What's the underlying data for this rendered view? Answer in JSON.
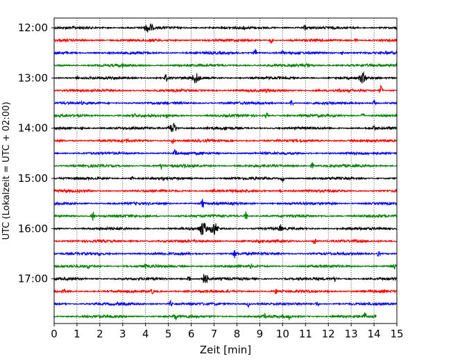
{
  "chart_data": {
    "type": "line",
    "title": "",
    "xlabel": "Zeit  [min]",
    "ylabel": "UTC (Lokalzeit = UTC + 02:00)",
    "xlim": [
      0,
      15
    ],
    "x_ticks": [
      "0",
      "1",
      "2",
      "3",
      "4",
      "5",
      "6",
      "7",
      "8",
      "9",
      "10",
      "11",
      "12",
      "13",
      "14",
      "15"
    ],
    "y_ticks": [
      {
        "label": "12:00",
        "minutes_after_12": 0
      },
      {
        "label": "13:00",
        "minutes_after_12": 60
      },
      {
        "label": "14:00",
        "minutes_after_12": 120
      },
      {
        "label": "15:00",
        "minutes_after_12": 180
      },
      {
        "label": "16:00",
        "minutes_after_12": 240
      },
      {
        "label": "17:00",
        "minutes_after_12": 300
      }
    ],
    "grid": "vertical dotted lines at each minute",
    "color_cycle": [
      "#000000",
      "#ff0000",
      "#0000ff",
      "#008000"
    ],
    "trace_start_times": [
      "12:00",
      "12:15",
      "12:30",
      "12:45",
      "13:00",
      "13:15",
      "13:30",
      "13:45",
      "14:00",
      "14:15",
      "14:30",
      "14:45",
      "15:00",
      "15:15",
      "15:30",
      "15:45",
      "16:00",
      "16:15",
      "16:30",
      "16:45",
      "17:00",
      "17:15",
      "17:30",
      "17:45"
    ],
    "last_trace_end_minute": 14.1,
    "events": [
      [
        [
          4.15,
          9
        ],
        [
          8.3,
          5
        ],
        [
          11.0,
          6
        ],
        [
          13.1,
          3
        ],
        [
          15.0,
          4
        ]
      ],
      [
        [
          4.2,
          3
        ],
        [
          9.5,
          5
        ],
        [
          13.2,
          3
        ]
      ],
      [
        [
          8.8,
          6
        ],
        [
          10.0,
          4
        ],
        [
          12.6,
          3
        ]
      ],
      [
        [
          3.0,
          4
        ],
        [
          11.1,
          7
        ],
        [
          15.0,
          5
        ]
      ],
      [
        [
          1.0,
          3
        ],
        [
          4.9,
          7
        ],
        [
          6.2,
          9
        ],
        [
          13.5,
          9
        ]
      ],
      [
        [
          9.3,
          4
        ],
        [
          12.5,
          4
        ],
        [
          14.3,
          8
        ]
      ],
      [
        [
          1.2,
          3
        ],
        [
          10.4,
          6
        ],
        [
          14.0,
          5
        ]
      ],
      [
        [
          3.5,
          6
        ],
        [
          4.9,
          5
        ],
        [
          9.3,
          5
        ],
        [
          13.5,
          5
        ]
      ],
      [
        [
          1.2,
          3
        ],
        [
          5.2,
          9
        ],
        [
          7.5,
          5
        ],
        [
          14.0,
          6
        ]
      ],
      [
        [
          3.2,
          4
        ],
        [
          5.2,
          5
        ],
        [
          10.8,
          3
        ]
      ],
      [
        [
          5.3,
          7
        ],
        [
          6.5,
          3
        ],
        [
          10.7,
          3
        ]
      ],
      [
        [
          1.5,
          3
        ],
        [
          4.7,
          6
        ],
        [
          5.7,
          5
        ],
        [
          11.3,
          5
        ]
      ],
      [
        [
          3.4,
          4
        ],
        [
          4.8,
          4
        ],
        [
          10.0,
          5
        ]
      ],
      [
        [
          7.0,
          4
        ],
        [
          9.9,
          3
        ]
      ],
      [
        [
          6.5,
          8
        ],
        [
          12.2,
          3
        ]
      ],
      [
        [
          1.7,
          8
        ],
        [
          8.4,
          7
        ]
      ],
      [
        [
          6.5,
          12
        ],
        [
          7.0,
          11
        ],
        [
          9.9,
          7
        ]
      ],
      [
        [
          9.0,
          3
        ],
        [
          11.4,
          7
        ]
      ],
      [
        [
          2.0,
          4
        ],
        [
          7.9,
          7
        ],
        [
          14.2,
          5
        ]
      ],
      [
        [
          1.5,
          5
        ],
        [
          4.0,
          5
        ],
        [
          8.6,
          4
        ],
        [
          14.9,
          5
        ]
      ],
      [
        [
          5.9,
          6
        ],
        [
          6.6,
          9
        ],
        [
          12.3,
          5
        ]
      ],
      [
        [
          0.4,
          7
        ],
        [
          4.3,
          5
        ],
        [
          9.7,
          5
        ]
      ],
      [
        [
          2.8,
          4
        ],
        [
          5.1,
          5
        ],
        [
          8.5,
          5
        ],
        [
          11.5,
          4
        ]
      ],
      [
        [
          2.0,
          3
        ],
        [
          5.3,
          7
        ],
        [
          9.2,
          5
        ],
        [
          10.3,
          5
        ],
        [
          13.6,
          7
        ]
      ]
    ]
  }
}
